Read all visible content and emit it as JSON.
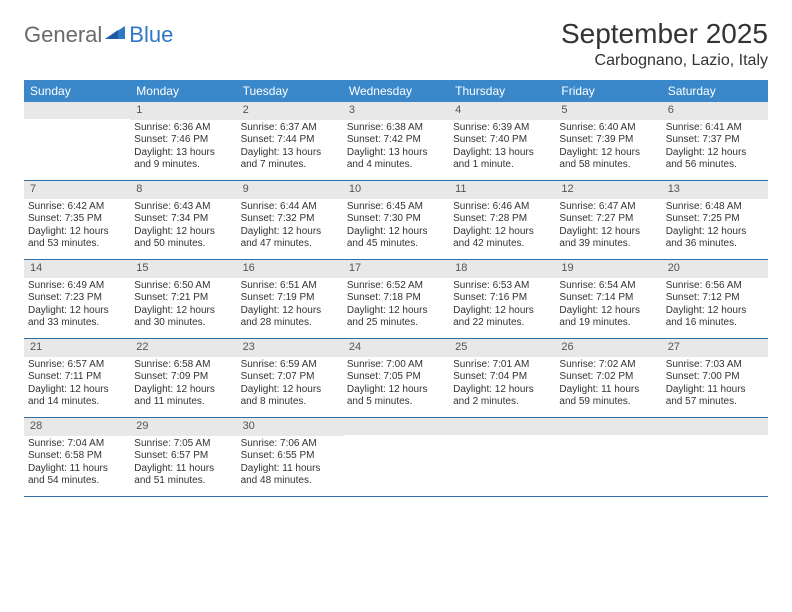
{
  "logo": {
    "general": "General",
    "blue": "Blue"
  },
  "title": "September 2025",
  "location": "Carbognano, Lazio, Italy",
  "colors": {
    "header_bg": "#3a87c9",
    "daynum_bg": "#e8e8e8",
    "rule": "#2f6fa8",
    "text": "#333333",
    "logo_gray": "#6a6a6a",
    "logo_blue": "#2f78c3"
  },
  "day_headers": [
    "Sunday",
    "Monday",
    "Tuesday",
    "Wednesday",
    "Thursday",
    "Friday",
    "Saturday"
  ],
  "weeks": [
    [
      {
        "n": "",
        "lines": []
      },
      {
        "n": "1",
        "lines": [
          "Sunrise: 6:36 AM",
          "Sunset: 7:46 PM",
          "Daylight: 13 hours and 9 minutes."
        ]
      },
      {
        "n": "2",
        "lines": [
          "Sunrise: 6:37 AM",
          "Sunset: 7:44 PM",
          "Daylight: 13 hours and 7 minutes."
        ]
      },
      {
        "n": "3",
        "lines": [
          "Sunrise: 6:38 AM",
          "Sunset: 7:42 PM",
          "Daylight: 13 hours and 4 minutes."
        ]
      },
      {
        "n": "4",
        "lines": [
          "Sunrise: 6:39 AM",
          "Sunset: 7:40 PM",
          "Daylight: 13 hours and 1 minute."
        ]
      },
      {
        "n": "5",
        "lines": [
          "Sunrise: 6:40 AM",
          "Sunset: 7:39 PM",
          "Daylight: 12 hours and 58 minutes."
        ]
      },
      {
        "n": "6",
        "lines": [
          "Sunrise: 6:41 AM",
          "Sunset: 7:37 PM",
          "Daylight: 12 hours and 56 minutes."
        ]
      }
    ],
    [
      {
        "n": "7",
        "lines": [
          "Sunrise: 6:42 AM",
          "Sunset: 7:35 PM",
          "Daylight: 12 hours and 53 minutes."
        ]
      },
      {
        "n": "8",
        "lines": [
          "Sunrise: 6:43 AM",
          "Sunset: 7:34 PM",
          "Daylight: 12 hours and 50 minutes."
        ]
      },
      {
        "n": "9",
        "lines": [
          "Sunrise: 6:44 AM",
          "Sunset: 7:32 PM",
          "Daylight: 12 hours and 47 minutes."
        ]
      },
      {
        "n": "10",
        "lines": [
          "Sunrise: 6:45 AM",
          "Sunset: 7:30 PM",
          "Daylight: 12 hours and 45 minutes."
        ]
      },
      {
        "n": "11",
        "lines": [
          "Sunrise: 6:46 AM",
          "Sunset: 7:28 PM",
          "Daylight: 12 hours and 42 minutes."
        ]
      },
      {
        "n": "12",
        "lines": [
          "Sunrise: 6:47 AM",
          "Sunset: 7:27 PM",
          "Daylight: 12 hours and 39 minutes."
        ]
      },
      {
        "n": "13",
        "lines": [
          "Sunrise: 6:48 AM",
          "Sunset: 7:25 PM",
          "Daylight: 12 hours and 36 minutes."
        ]
      }
    ],
    [
      {
        "n": "14",
        "lines": [
          "Sunrise: 6:49 AM",
          "Sunset: 7:23 PM",
          "Daylight: 12 hours and 33 minutes."
        ]
      },
      {
        "n": "15",
        "lines": [
          "Sunrise: 6:50 AM",
          "Sunset: 7:21 PM",
          "Daylight: 12 hours and 30 minutes."
        ]
      },
      {
        "n": "16",
        "lines": [
          "Sunrise: 6:51 AM",
          "Sunset: 7:19 PM",
          "Daylight: 12 hours and 28 minutes."
        ]
      },
      {
        "n": "17",
        "lines": [
          "Sunrise: 6:52 AM",
          "Sunset: 7:18 PM",
          "Daylight: 12 hours and 25 minutes."
        ]
      },
      {
        "n": "18",
        "lines": [
          "Sunrise: 6:53 AM",
          "Sunset: 7:16 PM",
          "Daylight: 12 hours and 22 minutes."
        ]
      },
      {
        "n": "19",
        "lines": [
          "Sunrise: 6:54 AM",
          "Sunset: 7:14 PM",
          "Daylight: 12 hours and 19 minutes."
        ]
      },
      {
        "n": "20",
        "lines": [
          "Sunrise: 6:56 AM",
          "Sunset: 7:12 PM",
          "Daylight: 12 hours and 16 minutes."
        ]
      }
    ],
    [
      {
        "n": "21",
        "lines": [
          "Sunrise: 6:57 AM",
          "Sunset: 7:11 PM",
          "Daylight: 12 hours and 14 minutes."
        ]
      },
      {
        "n": "22",
        "lines": [
          "Sunrise: 6:58 AM",
          "Sunset: 7:09 PM",
          "Daylight: 12 hours and 11 minutes."
        ]
      },
      {
        "n": "23",
        "lines": [
          "Sunrise: 6:59 AM",
          "Sunset: 7:07 PM",
          "Daylight: 12 hours and 8 minutes."
        ]
      },
      {
        "n": "24",
        "lines": [
          "Sunrise: 7:00 AM",
          "Sunset: 7:05 PM",
          "Daylight: 12 hours and 5 minutes."
        ]
      },
      {
        "n": "25",
        "lines": [
          "Sunrise: 7:01 AM",
          "Sunset: 7:04 PM",
          "Daylight: 12 hours and 2 minutes."
        ]
      },
      {
        "n": "26",
        "lines": [
          "Sunrise: 7:02 AM",
          "Sunset: 7:02 PM",
          "Daylight: 11 hours and 59 minutes."
        ]
      },
      {
        "n": "27",
        "lines": [
          "Sunrise: 7:03 AM",
          "Sunset: 7:00 PM",
          "Daylight: 11 hours and 57 minutes."
        ]
      }
    ],
    [
      {
        "n": "28",
        "lines": [
          "Sunrise: 7:04 AM",
          "Sunset: 6:58 PM",
          "Daylight: 11 hours and 54 minutes."
        ]
      },
      {
        "n": "29",
        "lines": [
          "Sunrise: 7:05 AM",
          "Sunset: 6:57 PM",
          "Daylight: 11 hours and 51 minutes."
        ]
      },
      {
        "n": "30",
        "lines": [
          "Sunrise: 7:06 AM",
          "Sunset: 6:55 PM",
          "Daylight: 11 hours and 48 minutes."
        ]
      },
      {
        "n": "",
        "lines": []
      },
      {
        "n": "",
        "lines": []
      },
      {
        "n": "",
        "lines": []
      },
      {
        "n": "",
        "lines": []
      }
    ]
  ]
}
